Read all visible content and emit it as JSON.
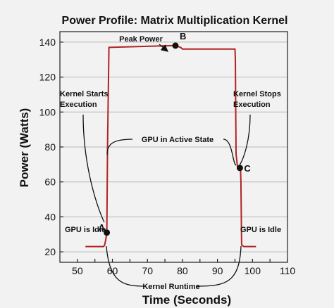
{
  "chart_data": {
    "type": "line",
    "title": "Power Profile: Matrix Multiplication Kernel",
    "xlabel": "Time (Seconds)",
    "ylabel": "Power (Watts)",
    "xlim": [
      45,
      110
    ],
    "ylim": [
      14,
      146
    ],
    "x_ticks": [
      50,
      55,
      60,
      65,
      70,
      75,
      80,
      85,
      90,
      95,
      100,
      105,
      110
    ],
    "x_tick_labels": [
      "50",
      "",
      "60",
      "",
      "70",
      "",
      "80",
      "",
      "90",
      "",
      "100",
      "",
      "110"
    ],
    "y_ticks": [
      20,
      40,
      60,
      80,
      100,
      120,
      140
    ],
    "grid": "y",
    "series": [
      {
        "color": "#b22222",
        "x": [
          52.3,
          57.5,
          57.8,
          58.1,
          58.4,
          58.6,
          59.0,
          77.0,
          78.0,
          79.5,
          80.0,
          95.0,
          95.1,
          95.3,
          95.7,
          96.2,
          96.6,
          96.7,
          96.9,
          97.5,
          101.0
        ],
        "y": [
          23,
          23,
          24,
          27,
          31,
          80,
          137,
          138,
          138,
          137,
          136,
          136,
          130,
          76,
          69,
          67,
          67,
          60,
          24,
          23,
          23
        ]
      }
    ],
    "markers": [
      {
        "label": "A",
        "x": 58.4,
        "y": 31
      },
      {
        "label": "B",
        "x": 78.0,
        "y": 138
      },
      {
        "label": "C",
        "x": 96.4,
        "y": 68
      }
    ],
    "annotations": {
      "peak_power": "Peak Power",
      "kernel_starts_1": "Kernel Starts",
      "kernel_starts_2": "Execution",
      "kernel_stops_1": "Kernel Stops",
      "kernel_stops_2": "Execution",
      "gpu_active": "GPU in Active State",
      "gpu_idle_left": "GPU is Idle",
      "gpu_idle_right": "GPU is Idle",
      "kernel_runtime": "Kernel Runtime"
    },
    "colors": {
      "background": "#f2f2f2",
      "series": "#b22222",
      "grid": "#b8b8b8",
      "axis": "#222222",
      "text": "#111111"
    }
  }
}
